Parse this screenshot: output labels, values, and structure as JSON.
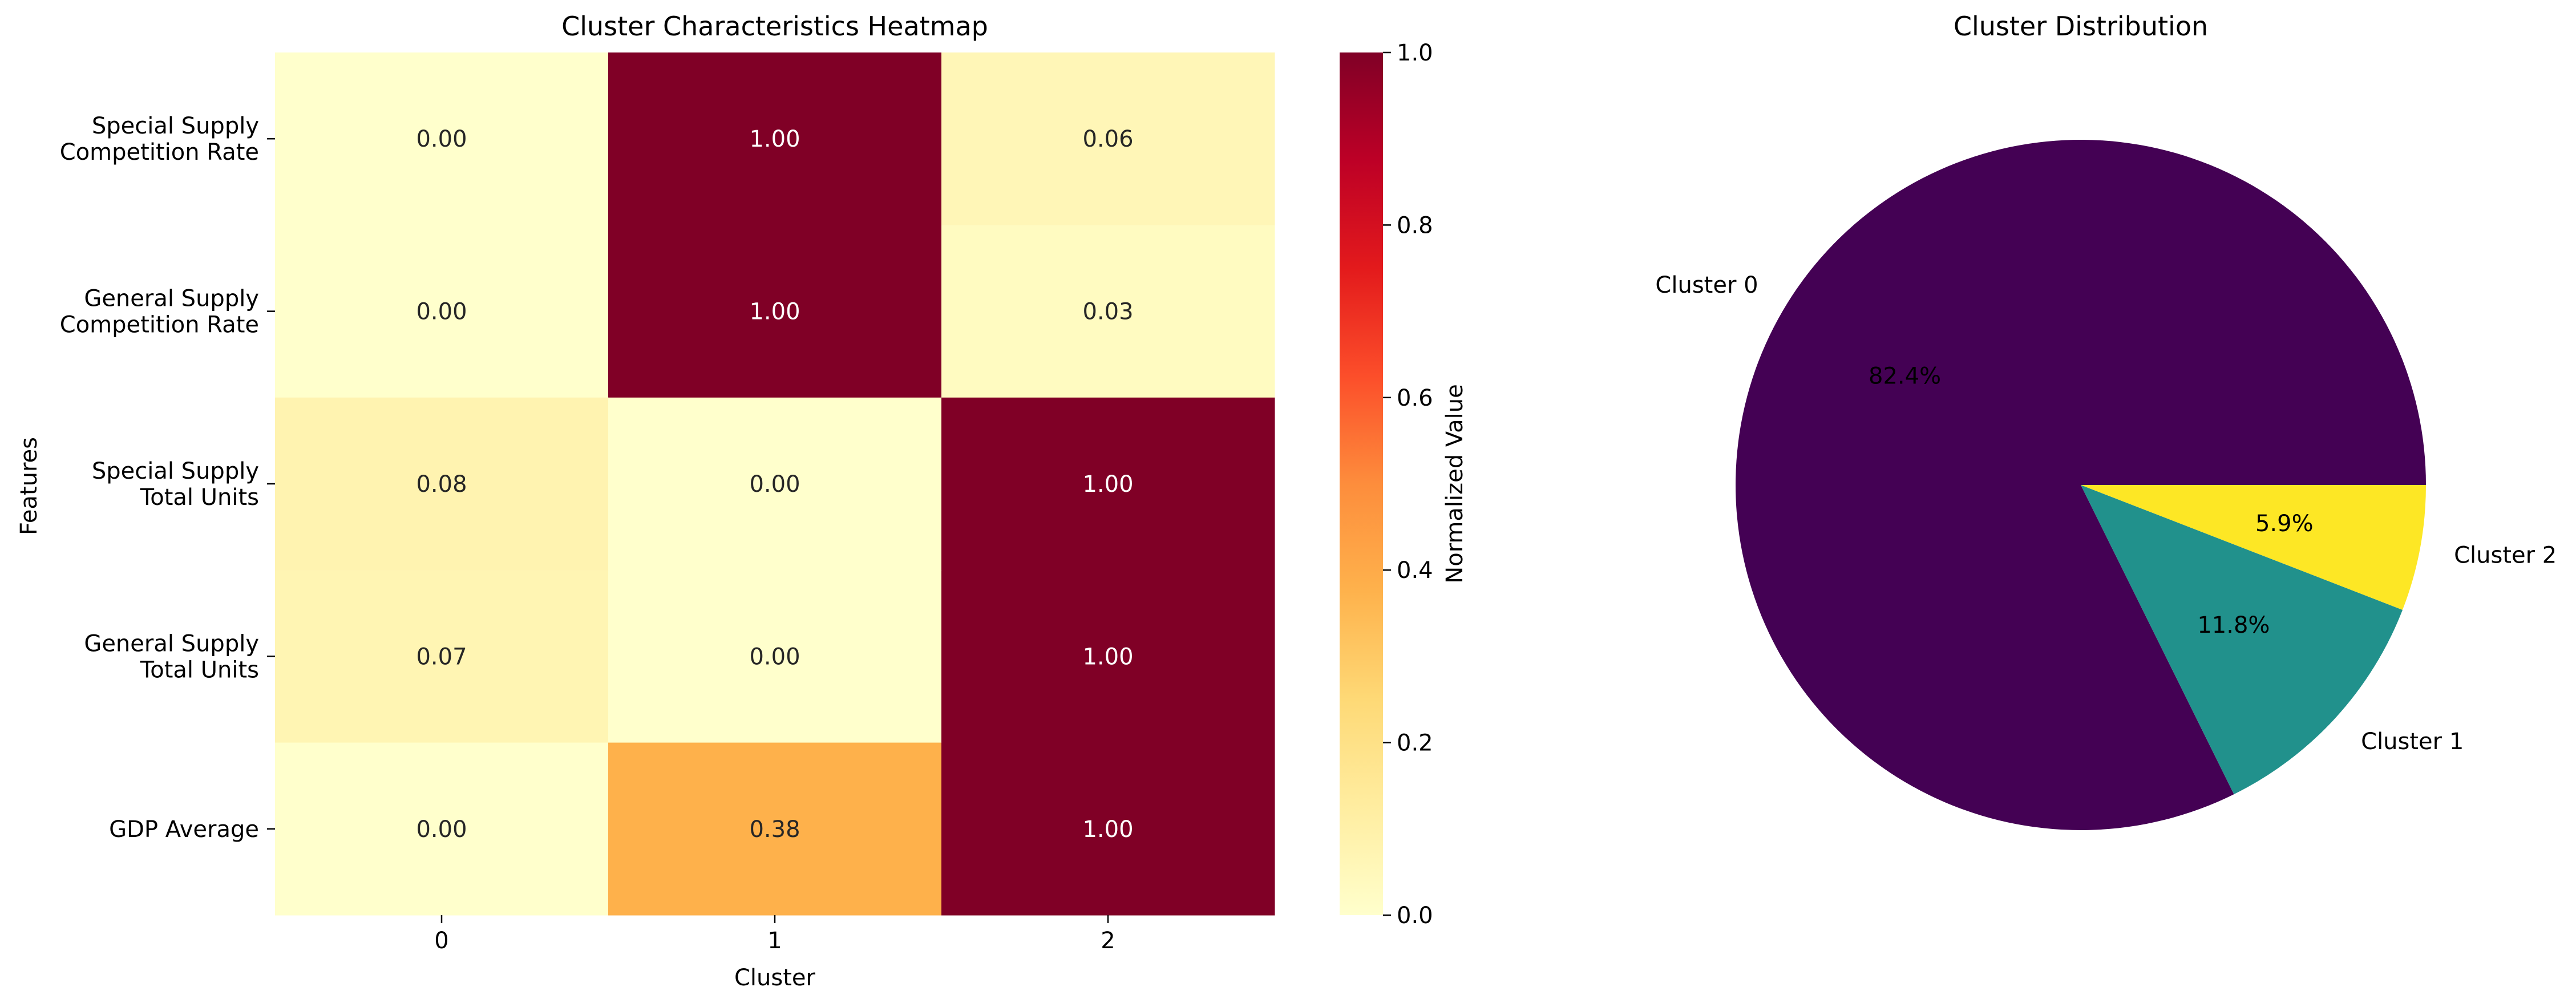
{
  "chart_data": [
    {
      "type": "heatmap",
      "title": "Cluster Characteristics Heatmap",
      "xlabel": "Cluster",
      "ylabel": "Features",
      "x_categories": [
        "0",
        "1",
        "2"
      ],
      "y_categories": [
        [
          "Special Supply",
          "Competition Rate"
        ],
        [
          "General Supply",
          "Competition Rate"
        ],
        [
          "Special Supply",
          "Total Units"
        ],
        [
          "General Supply",
          "Total Units"
        ],
        [
          "GDP Average"
        ]
      ],
      "values": [
        [
          0.0,
          1.0,
          0.06
        ],
        [
          0.0,
          1.0,
          0.03
        ],
        [
          0.08,
          0.0,
          1.0
        ],
        [
          0.07,
          0.0,
          1.0
        ],
        [
          0.0,
          0.38,
          1.0
        ]
      ],
      "value_labels": [
        [
          "0.00",
          "1.00",
          "0.06"
        ],
        [
          "0.00",
          "1.00",
          "0.03"
        ],
        [
          "0.08",
          "0.00",
          "1.00"
        ],
        [
          "0.07",
          "0.00",
          "1.00"
        ],
        [
          "0.00",
          "0.38",
          "1.00"
        ]
      ],
      "colormap": "YlOrRd",
      "colorbar": {
        "label": "Normalized Value",
        "range": [
          0,
          1
        ],
        "ticks": [
          "0.0",
          "0.2",
          "0.4",
          "0.6",
          "0.8",
          "1.0"
        ]
      }
    },
    {
      "type": "pie",
      "title": "Cluster Distribution",
      "slices": [
        {
          "label": "Cluster 0",
          "value": 82.4,
          "pct_label": "82.4%",
          "color": "#440154"
        },
        {
          "label": "Cluster 1",
          "value": 11.8,
          "pct_label": "11.8%",
          "color": "#21918c"
        },
        {
          "label": "Cluster 2",
          "value": 5.9,
          "pct_label": "5.9%",
          "color": "#fde725"
        }
      ]
    }
  ]
}
